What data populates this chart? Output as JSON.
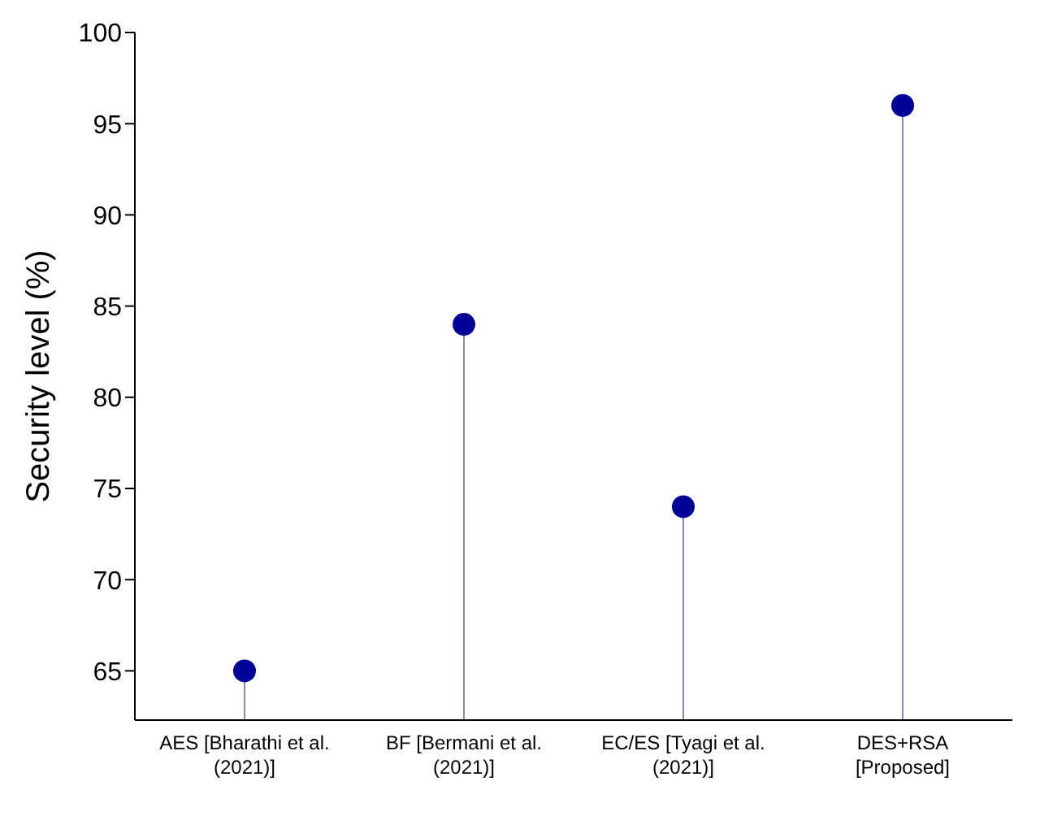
{
  "chart_data": {
    "type": "lollipop",
    "ylabel": "Security level (%)",
    "categories": [
      "AES [Bharathi et al.\n(2021)]",
      "BF [Bermani et al.\n(2021)]",
      "EC/ES [Tyagi et al.\n(2021)]",
      "DES+RSA\n[Proposed]"
    ],
    "values": [
      65,
      84,
      74,
      96
    ],
    "color": "#000099",
    "ylim": [
      62.3,
      100
    ],
    "yticks": [
      65,
      70,
      75,
      80,
      85,
      90,
      95,
      100
    ],
    "marker": "circle"
  }
}
